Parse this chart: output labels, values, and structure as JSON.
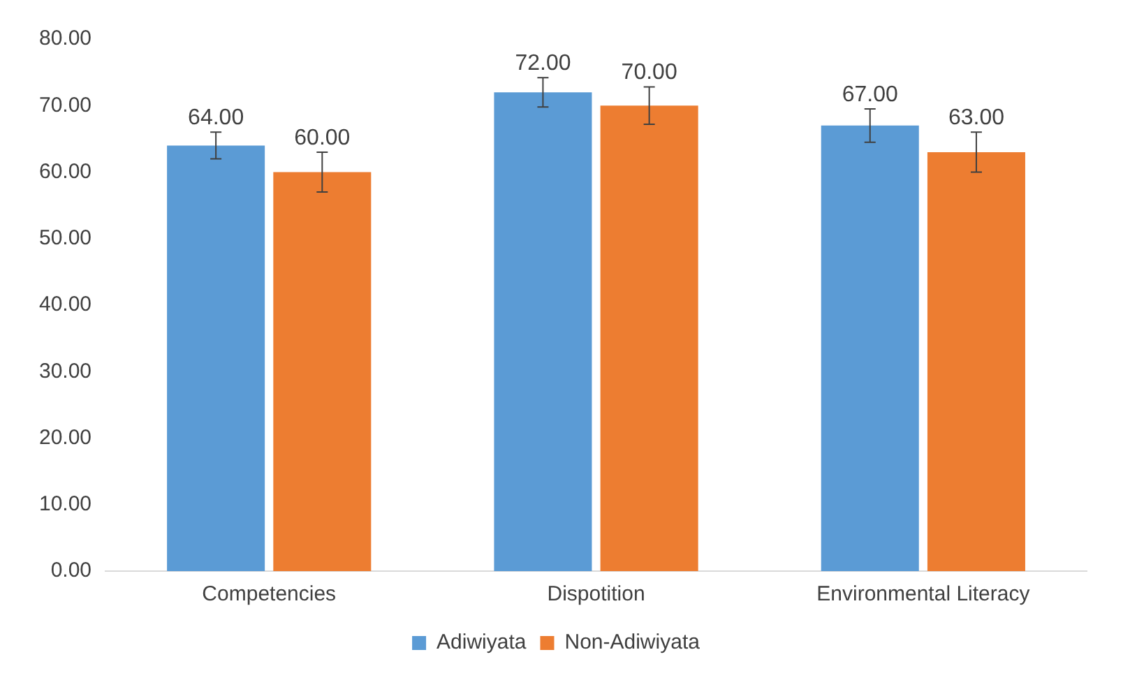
{
  "chart_data": {
    "type": "bar",
    "categories": [
      "Competencies",
      "Dispotition",
      "Environmental Literacy"
    ],
    "series": [
      {
        "name": "Adiwiyata",
        "color": "#5b9bd5",
        "values": [
          64,
          72,
          67
        ],
        "errors": [
          2,
          2.2,
          2.5
        ],
        "value_labels": [
          "64.00",
          "72.00",
          "67.00"
        ]
      },
      {
        "name": "Non-Adiwiyata",
        "color": "#ed7d31",
        "values": [
          60,
          70,
          63
        ],
        "errors": [
          3,
          2.8,
          3
        ],
        "value_labels": [
          "60.00",
          "70.00",
          "63.00"
        ]
      }
    ],
    "ylim": [
      0,
      80
    ],
    "yticks": [
      {
        "value": 0,
        "label": "0.00"
      },
      {
        "value": 10,
        "label": "10.00"
      },
      {
        "value": 20,
        "label": "20.00"
      },
      {
        "value": 30,
        "label": "30.00"
      },
      {
        "value": 40,
        "label": "40.00"
      },
      {
        "value": 50,
        "label": "50.00"
      },
      {
        "value": 60,
        "label": "60.00"
      },
      {
        "value": 70,
        "label": "70.00"
      },
      {
        "value": 80,
        "label": "80.00"
      }
    ],
    "grid": false,
    "legend": "bottom"
  }
}
